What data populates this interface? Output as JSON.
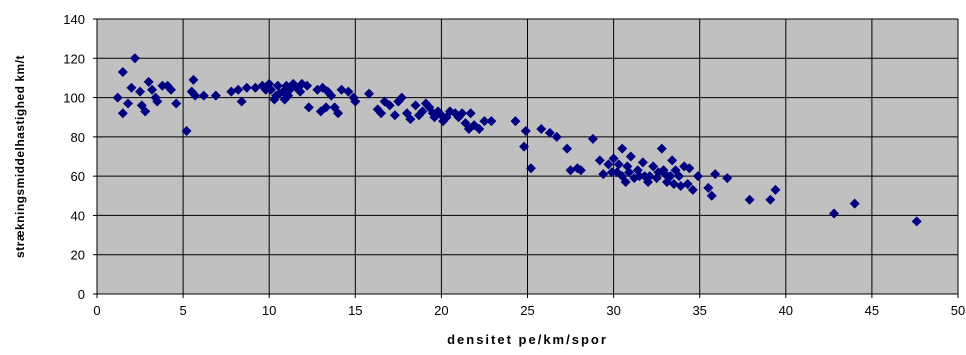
{
  "chart_data": {
    "type": "scatter",
    "xlabel": "densitet pe/km/spor",
    "ylabel": "strækningsmiddelhastighed km/t",
    "xlim": [
      0,
      50
    ],
    "ylim": [
      0,
      140
    ],
    "x_ticks": [
      "0",
      "5",
      "10",
      "15",
      "20",
      "25",
      "30",
      "35",
      "40",
      "45",
      "50"
    ],
    "y_ticks": [
      "0",
      "20",
      "40",
      "60",
      "80",
      "100",
      "120",
      "140"
    ],
    "grid": true,
    "legend": "none",
    "colors": {
      "marker": "#000080",
      "plot_bg": "#c0c0c0",
      "grid": "#000000"
    },
    "points": [
      [
        1.2,
        100
      ],
      [
        1.5,
        92
      ],
      [
        1.5,
        113
      ],
      [
        1.8,
        97
      ],
      [
        2.0,
        105
      ],
      [
        2.2,
        120
      ],
      [
        2.5,
        103
      ],
      [
        2.6,
        96
      ],
      [
        2.8,
        93
      ],
      [
        3.0,
        108
      ],
      [
        3.2,
        104
      ],
      [
        3.4,
        100
      ],
      [
        3.5,
        98
      ],
      [
        3.8,
        106
      ],
      [
        4.1,
        106
      ],
      [
        4.3,
        104
      ],
      [
        4.6,
        97
      ],
      [
        5.2,
        83
      ],
      [
        5.5,
        103
      ],
      [
        5.6,
        109
      ],
      [
        5.7,
        101
      ],
      [
        6.2,
        101
      ],
      [
        6.9,
        101
      ],
      [
        7.8,
        103
      ],
      [
        8.2,
        104
      ],
      [
        8.4,
        98
      ],
      [
        8.7,
        105
      ],
      [
        9.2,
        105
      ],
      [
        9.6,
        106
      ],
      [
        9.8,
        104
      ],
      [
        10.0,
        107
      ],
      [
        10.1,
        104
      ],
      [
        10.3,
        99
      ],
      [
        10.4,
        101
      ],
      [
        10.5,
        106
      ],
      [
        10.6,
        102
      ],
      [
        10.8,
        103
      ],
      [
        10.9,
        99
      ],
      [
        11.0,
        106
      ],
      [
        11.1,
        101
      ],
      [
        11.2,
        104
      ],
      [
        11.4,
        107
      ],
      [
        11.6,
        105
      ],
      [
        11.8,
        103
      ],
      [
        11.9,
        107
      ],
      [
        12.2,
        106
      ],
      [
        12.3,
        95
      ],
      [
        12.8,
        104
      ],
      [
        13.0,
        93
      ],
      [
        13.1,
        105
      ],
      [
        13.3,
        95
      ],
      [
        13.4,
        103
      ],
      [
        13.6,
        101
      ],
      [
        13.8,
        95
      ],
      [
        14.0,
        92
      ],
      [
        14.2,
        104
      ],
      [
        14.6,
        103
      ],
      [
        14.9,
        100
      ],
      [
        15.0,
        98
      ],
      [
        15.8,
        102
      ],
      [
        16.3,
        94
      ],
      [
        16.5,
        92
      ],
      [
        16.7,
        98
      ],
      [
        17.0,
        96
      ],
      [
        17.3,
        91
      ],
      [
        17.5,
        98
      ],
      [
        17.7,
        100
      ],
      [
        18.0,
        92
      ],
      [
        18.2,
        89
      ],
      [
        18.5,
        96
      ],
      [
        18.7,
        91
      ],
      [
        18.9,
        93
      ],
      [
        19.1,
        97
      ],
      [
        19.3,
        95
      ],
      [
        19.5,
        92
      ],
      [
        19.6,
        90
      ],
      [
        19.8,
        93
      ],
      [
        20.0,
        91
      ],
      [
        20.1,
        88
      ],
      [
        20.3,
        90
      ],
      [
        20.5,
        93
      ],
      [
        20.8,
        92
      ],
      [
        21.0,
        90
      ],
      [
        21.2,
        92
      ],
      [
        21.4,
        87
      ],
      [
        21.6,
        84
      ],
      [
        21.7,
        92
      ],
      [
        21.9,
        86
      ],
      [
        22.2,
        84
      ],
      [
        22.5,
        88
      ],
      [
        22.9,
        88
      ],
      [
        24.3,
        88
      ],
      [
        24.8,
        75
      ],
      [
        24.9,
        83
      ],
      [
        25.2,
        64
      ],
      [
        25.8,
        84
      ],
      [
        26.3,
        82
      ],
      [
        26.7,
        80
      ],
      [
        27.3,
        74
      ],
      [
        27.5,
        63
      ],
      [
        27.9,
        64
      ],
      [
        28.1,
        63
      ],
      [
        28.8,
        79
      ],
      [
        29.2,
        68
      ],
      [
        29.4,
        61
      ],
      [
        29.7,
        66
      ],
      [
        29.9,
        62
      ],
      [
        30.0,
        69
      ],
      [
        30.2,
        62
      ],
      [
        30.3,
        66
      ],
      [
        30.5,
        74
      ],
      [
        30.5,
        60
      ],
      [
        30.7,
        57
      ],
      [
        30.8,
        65
      ],
      [
        30.9,
        62
      ],
      [
        31.0,
        70
      ],
      [
        31.2,
        59
      ],
      [
        31.4,
        63
      ],
      [
        31.5,
        60
      ],
      [
        31.7,
        67
      ],
      [
        31.8,
        60
      ],
      [
        32.0,
        57
      ],
      [
        32.1,
        60
      ],
      [
        32.3,
        65
      ],
      [
        32.5,
        59
      ],
      [
        32.6,
        62
      ],
      [
        32.8,
        74
      ],
      [
        32.9,
        63
      ],
      [
        33.0,
        61
      ],
      [
        33.1,
        57
      ],
      [
        33.3,
        60
      ],
      [
        33.4,
        68
      ],
      [
        33.5,
        56
      ],
      [
        33.6,
        63
      ],
      [
        33.8,
        60
      ],
      [
        33.9,
        55
      ],
      [
        34.1,
        65
      ],
      [
        34.3,
        56
      ],
      [
        34.4,
        64
      ],
      [
        34.6,
        53
      ],
      [
        34.9,
        60
      ],
      [
        35.5,
        54
      ],
      [
        35.7,
        50
      ],
      [
        35.9,
        61
      ],
      [
        36.6,
        59
      ],
      [
        37.9,
        48
      ],
      [
        39.1,
        48
      ],
      [
        39.4,
        53
      ],
      [
        42.8,
        41
      ],
      [
        44.0,
        46
      ],
      [
        47.6,
        37
      ]
    ]
  }
}
